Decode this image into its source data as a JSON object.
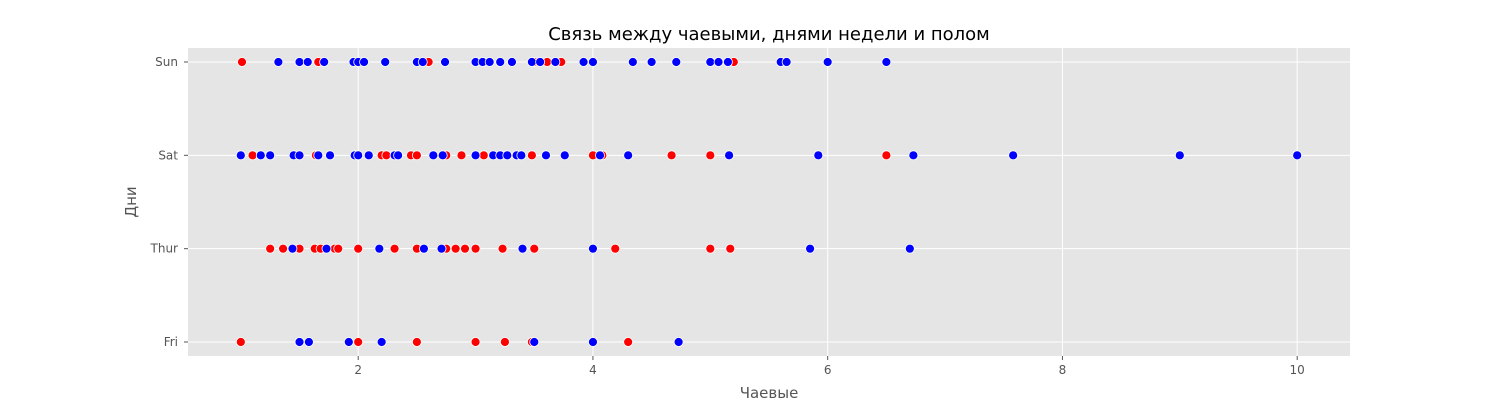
{
  "chart_data": {
    "type": "scatter",
    "title": "Связь между чаевыми, днями недели и полом",
    "xlabel": "Чаевые",
    "ylabel": "Дни",
    "xlim": [
      0.55,
      10.45
    ],
    "xticks": [
      2,
      4,
      6,
      8,
      10
    ],
    "categories": [
      "Sun",
      "Sat",
      "Thur",
      "Fri"
    ],
    "grid": true,
    "legend": "none",
    "colors": {
      "plot_background": "#e5e5e5",
      "grid": "#ffffff",
      "series_1": "#ff0000",
      "series_2": "#0000ff"
    },
    "series": [
      {
        "color": "#ff0000",
        "points": [
          {
            "day": "Sun",
            "tip": 1.01
          },
          {
            "day": "Sun",
            "tip": 1.66
          },
          {
            "day": "Sun",
            "tip": 2.6
          },
          {
            "day": "Sun",
            "tip": 3.5
          },
          {
            "day": "Sun",
            "tip": 3.61
          },
          {
            "day": "Sun",
            "tip": 3.73
          },
          {
            "day": "Sun",
            "tip": 5.2
          },
          {
            "day": "Sat",
            "tip": 1.1
          },
          {
            "day": "Sat",
            "tip": 1.64
          },
          {
            "day": "Sat",
            "tip": 2.2
          },
          {
            "day": "Sat",
            "tip": 2.24
          },
          {
            "day": "Sat",
            "tip": 2.45
          },
          {
            "day": "Sat",
            "tip": 2.5
          },
          {
            "day": "Sat",
            "tip": 2.75
          },
          {
            "day": "Sat",
            "tip": 2.88
          },
          {
            "day": "Sat",
            "tip": 3.07
          },
          {
            "day": "Sat",
            "tip": 3.48
          },
          {
            "day": "Sat",
            "tip": 4.0
          },
          {
            "day": "Sat",
            "tip": 4.08
          },
          {
            "day": "Sat",
            "tip": 4.67
          },
          {
            "day": "Sat",
            "tip": 5.0
          },
          {
            "day": "Sat",
            "tip": 6.5
          },
          {
            "day": "Thur",
            "tip": 1.25
          },
          {
            "day": "Thur",
            "tip": 1.36
          },
          {
            "day": "Thur",
            "tip": 1.5
          },
          {
            "day": "Thur",
            "tip": 1.63
          },
          {
            "day": "Thur",
            "tip": 1.68
          },
          {
            "day": "Thur",
            "tip": 1.8
          },
          {
            "day": "Thur",
            "tip": 1.83
          },
          {
            "day": "Thur",
            "tip": 2.0
          },
          {
            "day": "Thur",
            "tip": 2.31
          },
          {
            "day": "Thur",
            "tip": 2.5
          },
          {
            "day": "Thur",
            "tip": 2.75
          },
          {
            "day": "Thur",
            "tip": 2.83
          },
          {
            "day": "Thur",
            "tip": 2.91
          },
          {
            "day": "Thur",
            "tip": 3.0
          },
          {
            "day": "Thur",
            "tip": 3.23
          },
          {
            "day": "Thur",
            "tip": 3.5
          },
          {
            "day": "Thur",
            "tip": 4.19
          },
          {
            "day": "Thur",
            "tip": 5.0
          },
          {
            "day": "Thur",
            "tip": 5.17
          },
          {
            "day": "Fri",
            "tip": 1.0
          },
          {
            "day": "Fri",
            "tip": 2.0
          },
          {
            "day": "Fri",
            "tip": 2.5
          },
          {
            "day": "Fri",
            "tip": 3.0
          },
          {
            "day": "Fri",
            "tip": 3.25
          },
          {
            "day": "Fri",
            "tip": 3.48
          },
          {
            "day": "Fri",
            "tip": 4.3
          }
        ]
      },
      {
        "color": "#0000ff",
        "points": [
          {
            "day": "Sun",
            "tip": 1.32
          },
          {
            "day": "Sun",
            "tip": 1.5
          },
          {
            "day": "Sun",
            "tip": 1.57
          },
          {
            "day": "Sun",
            "tip": 1.71
          },
          {
            "day": "Sun",
            "tip": 1.96
          },
          {
            "day": "Sun",
            "tip": 2.0
          },
          {
            "day": "Sun",
            "tip": 2.05
          },
          {
            "day": "Sun",
            "tip": 2.23
          },
          {
            "day": "Sun",
            "tip": 2.5
          },
          {
            "day": "Sun",
            "tip": 2.55
          },
          {
            "day": "Sun",
            "tip": 2.74
          },
          {
            "day": "Sun",
            "tip": 3.0
          },
          {
            "day": "Sun",
            "tip": 3.06
          },
          {
            "day": "Sun",
            "tip": 3.12
          },
          {
            "day": "Sun",
            "tip": 3.21
          },
          {
            "day": "Sun",
            "tip": 3.31
          },
          {
            "day": "Sun",
            "tip": 3.48
          },
          {
            "day": "Sun",
            "tip": 3.55
          },
          {
            "day": "Sun",
            "tip": 3.68
          },
          {
            "day": "Sun",
            "tip": 3.92
          },
          {
            "day": "Sun",
            "tip": 4.0
          },
          {
            "day": "Sun",
            "tip": 4.34
          },
          {
            "day": "Sun",
            "tip": 4.5
          },
          {
            "day": "Sun",
            "tip": 4.71
          },
          {
            "day": "Sun",
            "tip": 5.0
          },
          {
            "day": "Sun",
            "tip": 5.07
          },
          {
            "day": "Sun",
            "tip": 5.15
          },
          {
            "day": "Sun",
            "tip": 5.6
          },
          {
            "day": "Sun",
            "tip": 5.65
          },
          {
            "day": "Sun",
            "tip": 6.0
          },
          {
            "day": "Sun",
            "tip": 6.5
          },
          {
            "day": "Sat",
            "tip": 1.0
          },
          {
            "day": "Sat",
            "tip": 1.17
          },
          {
            "day": "Sat",
            "tip": 1.25
          },
          {
            "day": "Sat",
            "tip": 1.45
          },
          {
            "day": "Sat",
            "tip": 1.5
          },
          {
            "day": "Sat",
            "tip": 1.66
          },
          {
            "day": "Sat",
            "tip": 1.76
          },
          {
            "day": "Sat",
            "tip": 1.97
          },
          {
            "day": "Sat",
            "tip": 2.0
          },
          {
            "day": "Sat",
            "tip": 2.09
          },
          {
            "day": "Sat",
            "tip": 2.31
          },
          {
            "day": "Sat",
            "tip": 2.34
          },
          {
            "day": "Sat",
            "tip": 2.64
          },
          {
            "day": "Sat",
            "tip": 2.72
          },
          {
            "day": "Sat",
            "tip": 3.0
          },
          {
            "day": "Sat",
            "tip": 3.15
          },
          {
            "day": "Sat",
            "tip": 3.21
          },
          {
            "day": "Sat",
            "tip": 3.27
          },
          {
            "day": "Sat",
            "tip": 3.35
          },
          {
            "day": "Sat",
            "tip": 3.39
          },
          {
            "day": "Sat",
            "tip": 3.6
          },
          {
            "day": "Sat",
            "tip": 3.76
          },
          {
            "day": "Sat",
            "tip": 4.06
          },
          {
            "day": "Sat",
            "tip": 4.3
          },
          {
            "day": "Sat",
            "tip": 5.16
          },
          {
            "day": "Sat",
            "tip": 5.92
          },
          {
            "day": "Sat",
            "tip": 6.73
          },
          {
            "day": "Sat",
            "tip": 7.58
          },
          {
            "day": "Sat",
            "tip": 9.0
          },
          {
            "day": "Sat",
            "tip": 10.0
          },
          {
            "day": "Thur",
            "tip": 1.44
          },
          {
            "day": "Thur",
            "tip": 1.73
          },
          {
            "day": "Thur",
            "tip": 2.18
          },
          {
            "day": "Thur",
            "tip": 2.56
          },
          {
            "day": "Thur",
            "tip": 2.71
          },
          {
            "day": "Thur",
            "tip": 3.4
          },
          {
            "day": "Thur",
            "tip": 4.0
          },
          {
            "day": "Thur",
            "tip": 5.85
          },
          {
            "day": "Thur",
            "tip": 6.7
          },
          {
            "day": "Fri",
            "tip": 1.5
          },
          {
            "day": "Fri",
            "tip": 1.58
          },
          {
            "day": "Fri",
            "tip": 1.92
          },
          {
            "day": "Fri",
            "tip": 2.2
          },
          {
            "day": "Fri",
            "tip": 3.5
          },
          {
            "day": "Fri",
            "tip": 4.0
          },
          {
            "day": "Fri",
            "tip": 4.73
          }
        ]
      }
    ]
  }
}
